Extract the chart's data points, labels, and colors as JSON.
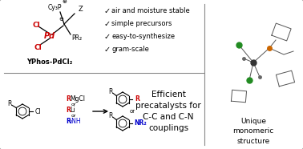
{
  "bg_color": "#ffffff",
  "border_color": "#888888",
  "panel1": {
    "checkmarks": [
      "air and moisture stable",
      "simple precursors",
      "easy-to-synthesize",
      "gram-scale"
    ],
    "label": "YPhos-PdCl₂"
  },
  "panel2": {
    "efficient_text": "Efficient\nprecatalysts for\nC-C and C-N\ncouplings"
  },
  "panel3": {
    "label": "Unique\nmonomeric\nstructure"
  },
  "colors": {
    "red": "#cc0000",
    "blue": "#0000cc",
    "black": "#000000",
    "green": "#228B22",
    "orange": "#cc6600",
    "gray_bond": "#555555",
    "pd_red": "#cc0000"
  }
}
